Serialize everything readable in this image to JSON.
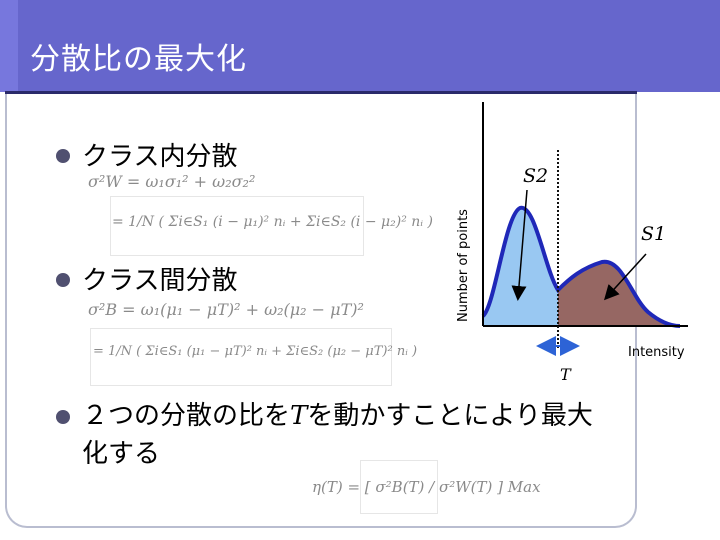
{
  "slide": {
    "title": "分散比の最大化"
  },
  "bullets": [
    {
      "label": "クラス内分散"
    },
    {
      "label": "クラス間分散"
    },
    {
      "label": "２つの分散の比をTを動かすことにより最大化する",
      "line1": "２つの分散の比を",
      "var": "T",
      "line1b": "を動かすことにより最大",
      "line2": "化する"
    }
  ],
  "formulas": {
    "within_1": "σ²W = ω₁σ₁² + ω₂σ₂²",
    "within_2": "= 1/N ( Σi∈S₁ (i − μ₁)² nᵢ + Σi∈S₂ (i − μ₂)² nᵢ )",
    "between_1": "σ²B = ω₁(μ₁ − μT)² + ω₂(μ₂ − μT)²",
    "between_2": "= 1/N ( Σi∈S₁ (μ₁ − μT)² nᵢ + Σi∈S₂ (μ₂ − μT)² nᵢ )",
    "ratio": "η(T) = [ σ²B(T) / σ²W(T) ] Max"
  },
  "chart": {
    "ylabel": "Number of points",
    "xlabel": "Intensity",
    "class_labels": [
      "S2",
      "S1"
    ],
    "threshold_label": "T",
    "colors": {
      "curve": "#1f28b8",
      "class_left_fill": "#99c8f2",
      "class_right_fill": "#966763",
      "threshold": "#111111",
      "arrow": "#2d63d6"
    }
  }
}
